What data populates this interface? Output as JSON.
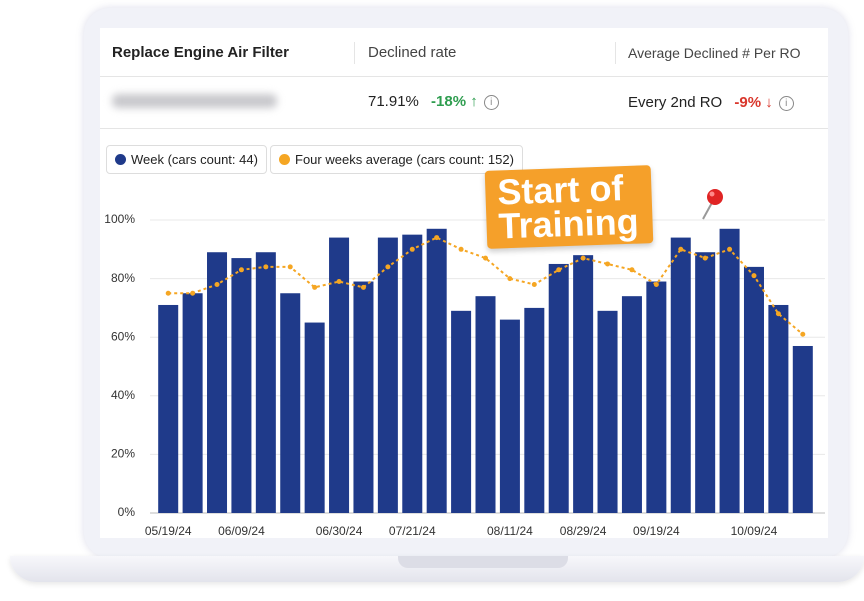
{
  "header": {
    "title": "Replace Engine Air Filter",
    "col2": "Declined rate",
    "col3": "Average Declined # Per RO"
  },
  "row": {
    "rate": "71.91%",
    "rate_change": "-18%",
    "per_ro": "Every 2nd RO",
    "per_ro_change": "-9%"
  },
  "chart_data": {
    "type": "bar",
    "annotation": "Start of Training",
    "categories": [
      "05/19/24",
      null,
      null,
      "06/09/24",
      null,
      null,
      null,
      "06/30/24",
      null,
      null,
      "07/21/24",
      null,
      null,
      null,
      "08/11/24",
      null,
      null,
      "08/29/24",
      null,
      null,
      "09/19/24",
      null,
      null,
      null,
      "10/09/24",
      null,
      null
    ],
    "series": [
      {
        "name": "Week (cars count: 44)",
        "color": "#1f3a8a",
        "values": [
          71,
          75,
          89,
          87,
          89,
          75,
          65,
          94,
          79,
          94,
          95,
          97,
          69,
          74,
          66,
          70,
          85,
          88,
          69,
          74,
          79,
          94,
          89,
          97,
          84,
          71,
          57
        ]
      },
      {
        "name": "Four weeks average (cars count: 152)",
        "color": "#f5a623",
        "type": "line",
        "values": [
          75,
          75,
          78,
          83,
          84,
          84,
          77,
          79,
          77,
          84,
          90,
          94,
          90,
          87,
          80,
          78,
          83,
          87,
          85,
          83,
          78,
          90,
          87,
          90,
          81,
          68,
          61
        ]
      }
    ],
    "ylim": [
      0,
      100
    ],
    "yticks": [
      {
        "value": 0,
        "label": "0%"
      },
      {
        "value": 20,
        "label": "20%"
      },
      {
        "value": 40,
        "label": "40%"
      },
      {
        "value": 60,
        "label": "60%"
      },
      {
        "value": 80,
        "label": "80%"
      },
      {
        "value": 100,
        "label": "100%"
      }
    ],
    "grid": true
  }
}
